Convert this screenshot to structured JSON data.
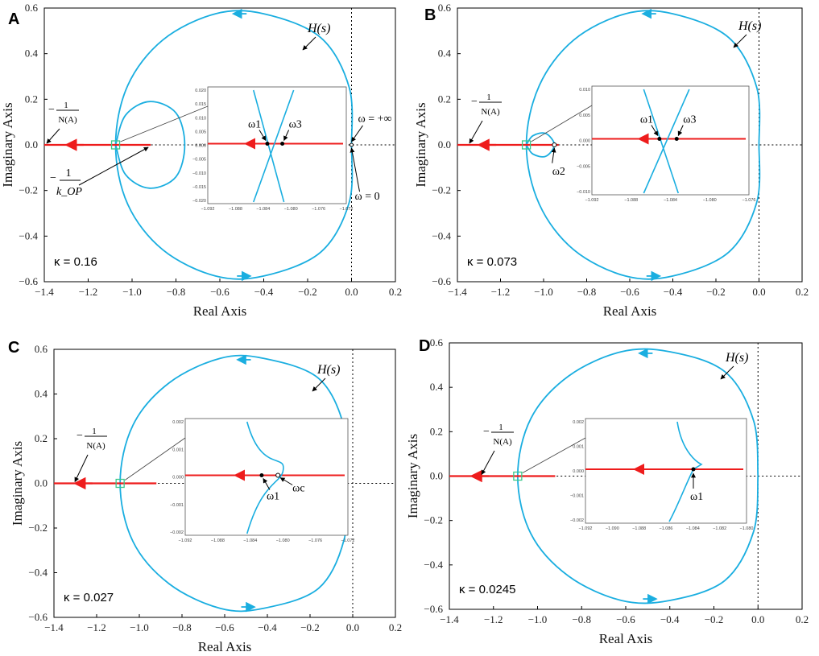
{
  "figure": {
    "panels": [
      "A",
      "B",
      "C",
      "D"
    ]
  },
  "colors": {
    "nyquist": "#1aaee0",
    "describing": "#ee1c1c",
    "marker": "#3cc88a"
  },
  "chart_data": [
    {
      "type": "line",
      "panel": "A",
      "kappa_label": "κ = 0.16",
      "xlabel": "Real Axis",
      "ylabel": "Imaginary Axis",
      "xlim": [
        -1.4,
        0.2
      ],
      "ylim": [
        -0.6,
        0.6
      ],
      "xticks": [
        "−1.4",
        "−1.2",
        "−1.0",
        "−0.8",
        "−0.6",
        "−0.4",
        "−0.2",
        "0.0",
        "0.2"
      ],
      "yticks": [
        "0.6",
        "0.4",
        "0.2",
        "0.0",
        "−0.2",
        "−0.4",
        "−0.6"
      ],
      "series": [
        {
          "name": "H(s)",
          "points": [
            [
              0.0,
              0.0
            ],
            [
              -0.01,
              0.25
            ],
            [
              -0.14,
              0.47
            ],
            [
              -0.4,
              0.575
            ],
            [
              -0.62,
              0.575
            ],
            [
              -0.86,
              0.46
            ],
            [
              -1.02,
              0.26
            ],
            [
              -1.075,
              0.0
            ],
            [
              -1.02,
              -0.26
            ],
            [
              -0.86,
              -0.46
            ],
            [
              -0.62,
              -0.575
            ],
            [
              -0.4,
              -0.575
            ],
            [
              -0.14,
              -0.47
            ],
            [
              -0.01,
              -0.25
            ],
            [
              0.0,
              0.0
            ]
          ]
        },
        {
          "name": "H(s) loop",
          "points": [
            [
              -1.075,
              0.0
            ],
            [
              -1.03,
              0.13
            ],
            [
              -0.92,
              0.19
            ],
            [
              -0.8,
              0.14
            ],
            [
              -0.76,
              0.0
            ],
            [
              -0.8,
              -0.14
            ],
            [
              -0.92,
              -0.19
            ],
            [
              -1.03,
              -0.13
            ],
            [
              -1.075,
              0.0
            ]
          ]
        },
        {
          "name": "-1/N(A)",
          "points": [
            [
              -1.4,
              0.0
            ],
            [
              -0.915,
              0.0
            ]
          ]
        }
      ],
      "annotations": {
        "hs": "H(s)",
        "neg_inv_N": "−1/N(A)",
        "neg_inv_k": "−1/k_OP",
        "omega_inf": "ω = +∞",
        "omega_zero": "ω = 0",
        "omega1": "ω1",
        "omega3": "ω3"
      },
      "inset": {
        "xticks": [
          "−1.092",
          "−1.088",
          "−1.084",
          "−1.080",
          "−1.076",
          "−1.072"
        ],
        "yticks": [
          "0.020",
          "0.015",
          "0.010",
          "0.005",
          "0.000",
          "−0.005",
          "−0.010",
          "−0.015",
          "−0.020"
        ]
      }
    },
    {
      "type": "line",
      "panel": "B",
      "kappa_label": "κ = 0.073",
      "xlabel": "Real Axis",
      "ylabel": "Imaginary Axis",
      "xlim": [
        -1.4,
        0.2
      ],
      "ylim": [
        -0.6,
        0.6
      ],
      "xticks": [
        "−1.4",
        "−1.2",
        "−1.0",
        "−0.8",
        "−0.6",
        "−0.4",
        "−0.2",
        "0.0",
        "0.2"
      ],
      "yticks": [
        "0.6",
        "0.4",
        "0.2",
        "0.0",
        "−0.2",
        "−0.4",
        "−0.6"
      ],
      "series": [
        {
          "name": "H(s)",
          "points": [
            [
              0.0,
              0.0
            ],
            [
              -0.01,
              0.25
            ],
            [
              -0.14,
              0.47
            ],
            [
              -0.4,
              0.575
            ],
            [
              -0.62,
              0.575
            ],
            [
              -0.86,
              0.46
            ],
            [
              -1.02,
              0.26
            ],
            [
              -1.08,
              0.0
            ],
            [
              -1.02,
              -0.26
            ],
            [
              -0.86,
              -0.46
            ],
            [
              -0.62,
              -0.575
            ],
            [
              -0.4,
              -0.575
            ],
            [
              -0.14,
              -0.47
            ],
            [
              -0.01,
              -0.25
            ],
            [
              0.0,
              0.0
            ]
          ]
        },
        {
          "name": "H(s) loop",
          "points": [
            [
              -1.08,
              0.0
            ],
            [
              -1.05,
              0.04
            ],
            [
              -0.99,
              0.05
            ],
            [
              -0.95,
              0.0
            ],
            [
              -0.99,
              -0.05
            ],
            [
              -1.05,
              -0.04
            ],
            [
              -1.08,
              0.0
            ]
          ]
        },
        {
          "name": "-1/N(A)",
          "points": [
            [
              -1.4,
              0.0
            ],
            [
              -0.93,
              0.0
            ]
          ]
        }
      ],
      "annotations": {
        "hs": "H(s)",
        "neg_inv_N": "−1/N(A)",
        "omega1": "ω1",
        "omega2": "ω2",
        "omega3": "ω3"
      },
      "inset": {
        "xticks": [
          "−1.092",
          "−1.088",
          "−1.084",
          "−1.080",
          "−1.076"
        ],
        "yticks": [
          "0.010",
          "0.005",
          "0.000",
          "−0.005",
          "−0.010"
        ]
      }
    },
    {
      "type": "line",
      "panel": "C",
      "kappa_label": "κ = 0.027",
      "xlabel": "Real Axis",
      "ylabel": "Imaginary Axis",
      "xlim": [
        -1.4,
        0.2
      ],
      "ylim": [
        -0.6,
        0.6
      ],
      "xticks": [
        "−1.4",
        "−1.2",
        "−1.0",
        "−0.8",
        "−0.6",
        "−0.4",
        "−0.2",
        "0.0",
        "0.2"
      ],
      "yticks": [
        "0.6",
        "0.4",
        "0.2",
        "0.0",
        "−0.2",
        "−0.4",
        "−0.6"
      ],
      "series": [
        {
          "name": "H(s)",
          "points": [
            [
              -0.03,
              0.0
            ],
            [
              -0.04,
              0.25
            ],
            [
              -0.16,
              0.47
            ],
            [
              -0.42,
              0.56
            ],
            [
              -0.62,
              0.56
            ],
            [
              -0.86,
              0.45
            ],
            [
              -1.03,
              0.26
            ],
            [
              -1.09,
              0.0
            ],
            [
              -1.03,
              -0.26
            ],
            [
              -0.86,
              -0.45
            ],
            [
              -0.62,
              -0.56
            ],
            [
              -0.42,
              -0.56
            ],
            [
              -0.16,
              -0.47
            ],
            [
              -0.04,
              -0.25
            ],
            [
              -0.03,
              0.0
            ]
          ]
        },
        {
          "name": "-1/N(A)",
          "points": [
            [
              -1.4,
              0.0
            ],
            [
              -0.92,
              0.0
            ]
          ]
        }
      ],
      "annotations": {
        "hs": "H(s)",
        "neg_inv_N": "−1/N(A)",
        "omega1": "ω1",
        "omegac": "ωc"
      },
      "inset": {
        "xticks": [
          "−1.092",
          "−1.088",
          "−1.084",
          "−1.080",
          "−1.076",
          "−1.072"
        ],
        "yticks": [
          "0.002",
          "0.001",
          "0.000",
          "−0.001",
          "−0.002"
        ]
      }
    },
    {
      "type": "line",
      "panel": "D",
      "kappa_label": "κ = 0.0245",
      "xlabel": "Real Axis",
      "ylabel": "Imaginary Axis",
      "xlim": [
        -1.4,
        0.2
      ],
      "ylim": [
        -0.6,
        0.6
      ],
      "xticks": [
        "−1.4",
        "−1.2",
        "−1.0",
        "−0.8",
        "−0.6",
        "−0.4",
        "−0.2",
        "0.0",
        "0.2"
      ],
      "yticks": [
        "0.6",
        "0.4",
        "0.2",
        "0.0",
        "−0.2",
        "−0.4",
        "−0.6"
      ],
      "series": [
        {
          "name": "H(s)",
          "points": [
            [
              0.0,
              0.0
            ],
            [
              -0.02,
              0.25
            ],
            [
              -0.15,
              0.47
            ],
            [
              -0.4,
              0.56
            ],
            [
              -0.62,
              0.56
            ],
            [
              -0.86,
              0.45
            ],
            [
              -1.03,
              0.26
            ],
            [
              -1.09,
              0.0
            ],
            [
              -1.03,
              -0.26
            ],
            [
              -0.86,
              -0.45
            ],
            [
              -0.62,
              -0.56
            ],
            [
              -0.4,
              -0.56
            ],
            [
              -0.15,
              -0.47
            ],
            [
              -0.02,
              -0.25
            ],
            [
              0.0,
              0.0
            ]
          ]
        },
        {
          "name": "-1/N(A)",
          "points": [
            [
              -1.4,
              0.0
            ],
            [
              -0.92,
              0.0
            ]
          ]
        }
      ],
      "annotations": {
        "hs": "H(s)",
        "neg_inv_N": "−1/N(A)",
        "omega1": "ω1"
      },
      "inset": {
        "xticks": [
          "−1.092",
          "−1.090",
          "−1.088",
          "−1.086",
          "−1.084",
          "−1.082",
          "−1.080"
        ],
        "yticks": [
          "0.002",
          "0.001",
          "0.000",
          "−0.001",
          "−0.002"
        ]
      }
    }
  ]
}
